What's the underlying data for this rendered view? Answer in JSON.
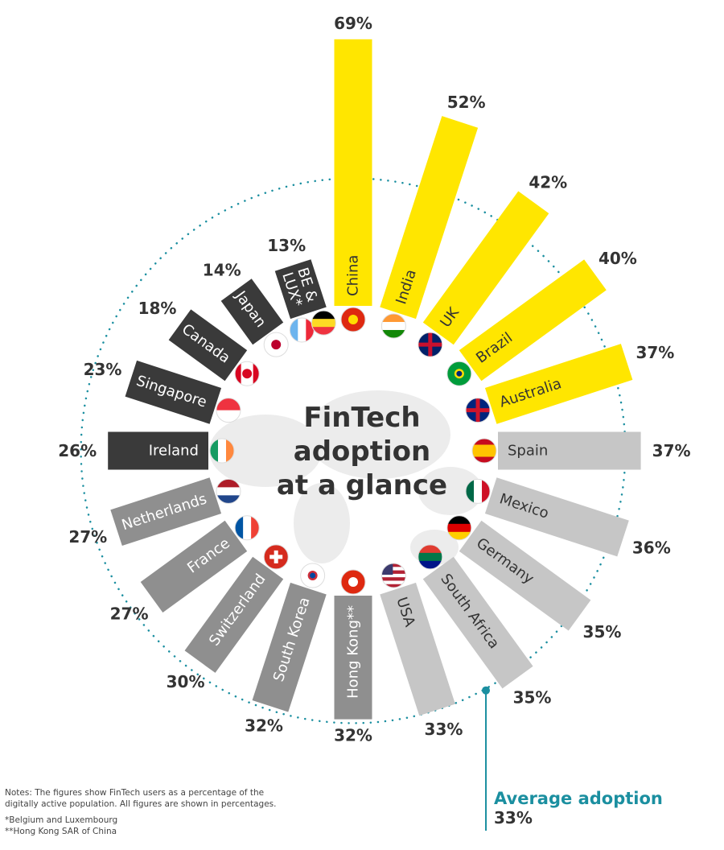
{
  "colors": {
    "yellow": "#ffe600",
    "dark": "#3a3a3a",
    "medium": "#8f8f8f",
    "light": "#c6c6c6",
    "accent": "#1b8fa0",
    "text": "#333333"
  },
  "chart_data": {
    "type": "bar",
    "layout": "radial",
    "title": "FinTech adoption at a glance",
    "title_lines": [
      "FinTech",
      "adoption",
      "at a glance"
    ],
    "unit": "%",
    "average": {
      "label": "Average adoption",
      "value": 33,
      "value_label": "33%"
    },
    "categories": [
      "China",
      "India",
      "UK",
      "Brazil",
      "Australia",
      "Spain",
      "Mexico",
      "Germany",
      "South Africa",
      "USA",
      "Hong Kong**",
      "South Korea",
      "Switzerland",
      "France",
      "Netherlands",
      "Ireland",
      "Singapore",
      "Canada",
      "Japan",
      "BE & LUX*"
    ],
    "values": [
      69,
      52,
      42,
      40,
      37,
      37,
      36,
      35,
      35,
      33,
      32,
      32,
      30,
      27,
      27,
      26,
      23,
      18,
      14,
      13
    ],
    "value_labels": [
      "69%",
      "52%",
      "42%",
      "40%",
      "37%",
      "37%",
      "36%",
      "35%",
      "35%",
      "33%",
      "32%",
      "32%",
      "30%",
      "27%",
      "27%",
      "26%",
      "23%",
      "18%",
      "14%",
      "13%"
    ],
    "bar_color_groups": [
      "yellow",
      "yellow",
      "yellow",
      "yellow",
      "yellow",
      "light",
      "light",
      "light",
      "light",
      "light",
      "medium",
      "medium",
      "medium",
      "medium",
      "medium",
      "dark",
      "dark",
      "dark",
      "dark",
      "dark"
    ],
    "flags": [
      [
        {
          "icon": "china-flag-icon",
          "dir": "h",
          "stripes": [
            "#de2910"
          ],
          "dot": "#ffde00"
        }
      ],
      [
        {
          "icon": "india-flag-icon",
          "dir": "h",
          "stripes": [
            "#ff9933",
            "#ffffff",
            "#138808"
          ]
        }
      ],
      [
        {
          "icon": "uk-flag-icon",
          "dir": "h",
          "stripes": [
            "#012169"
          ],
          "cross": "#c8102e"
        }
      ],
      [
        {
          "icon": "brazil-flag-icon",
          "dir": "h",
          "stripes": [
            "#009c3b"
          ],
          "dot": "#ffdf00",
          "dot2": "#002776"
        }
      ],
      [
        {
          "icon": "australia-flag-icon",
          "dir": "h",
          "stripes": [
            "#00247d"
          ],
          "cross": "#cf142b"
        }
      ],
      [
        {
          "icon": "spain-flag-icon",
          "dir": "h",
          "stripes": [
            "#c60b1e",
            "#ffc400",
            "#ffc400",
            "#c60b1e"
          ]
        }
      ],
      [
        {
          "icon": "mexico-flag-icon",
          "dir": "v",
          "stripes": [
            "#006847",
            "#ffffff",
            "#ce1126"
          ]
        }
      ],
      [
        {
          "icon": "germany-flag-icon",
          "dir": "h",
          "stripes": [
            "#000000",
            "#dd0000",
            "#ffce00"
          ]
        }
      ],
      [
        {
          "icon": "south-africa-flag-icon",
          "dir": "h",
          "stripes": [
            "#e03c31",
            "#007749",
            "#001489"
          ]
        }
      ],
      [
        {
          "icon": "usa-flag-icon",
          "dir": "h",
          "stripes": [
            "#b22234",
            "#ffffff",
            "#b22234",
            "#ffffff",
            "#b22234",
            "#ffffff",
            "#b22234"
          ],
          "canton": "#3c3b6e"
        }
      ],
      [
        {
          "icon": "hong-kong-flag-icon",
          "dir": "h",
          "stripes": [
            "#de2910"
          ],
          "dot": "#ffffff"
        }
      ],
      [
        {
          "icon": "south-korea-flag-icon",
          "dir": "h",
          "stripes": [
            "#ffffff"
          ],
          "dot": "#cd2e3a",
          "dot2": "#0047a0"
        }
      ],
      [
        {
          "icon": "switzerland-flag-icon",
          "dir": "h",
          "stripes": [
            "#d52b1e"
          ],
          "plus": "#ffffff"
        }
      ],
      [
        {
          "icon": "france-flag-icon",
          "dir": "v",
          "stripes": [
            "#0055a4",
            "#ffffff",
            "#ef4135"
          ]
        }
      ],
      [
        {
          "icon": "netherlands-flag-icon",
          "dir": "h",
          "stripes": [
            "#ae1c28",
            "#ffffff",
            "#21468b"
          ]
        }
      ],
      [
        {
          "icon": "ireland-flag-icon",
          "dir": "v",
          "stripes": [
            "#169b62",
            "#ffffff",
            "#ff883e"
          ]
        }
      ],
      [
        {
          "icon": "singapore-flag-icon",
          "dir": "h",
          "stripes": [
            "#ef3340",
            "#ffffff"
          ]
        }
      ],
      [
        {
          "icon": "canada-flag-icon",
          "dir": "v",
          "stripes": [
            "#d80621",
            "#ffffff",
            "#ffffff",
            "#d80621"
          ],
          "dot": "#d80621"
        }
      ],
      [
        {
          "icon": "japan-flag-icon",
          "dir": "h",
          "stripes": [
            "#ffffff"
          ],
          "dot": "#bc002d"
        }
      ],
      [
        {
          "icon": "luxembourg-flag-icon",
          "dir": "v",
          "stripes": [
            "#6cb4ee",
            "#ffffff",
            "#ed2939"
          ]
        },
        {
          "icon": "belgium-flag-icon",
          "dir": "h",
          "stripes": [
            "#000000",
            "#fdda24",
            "#ef3340"
          ]
        }
      ]
    ]
  },
  "notes": {
    "text": "Notes: The figures show FinTech users as a percentage of the digitally active population. All figures are shown in percentages.",
    "footnote_1": "*Belgium and Luxembourg",
    "footnote_2": "**Hong Kong SAR of China"
  }
}
